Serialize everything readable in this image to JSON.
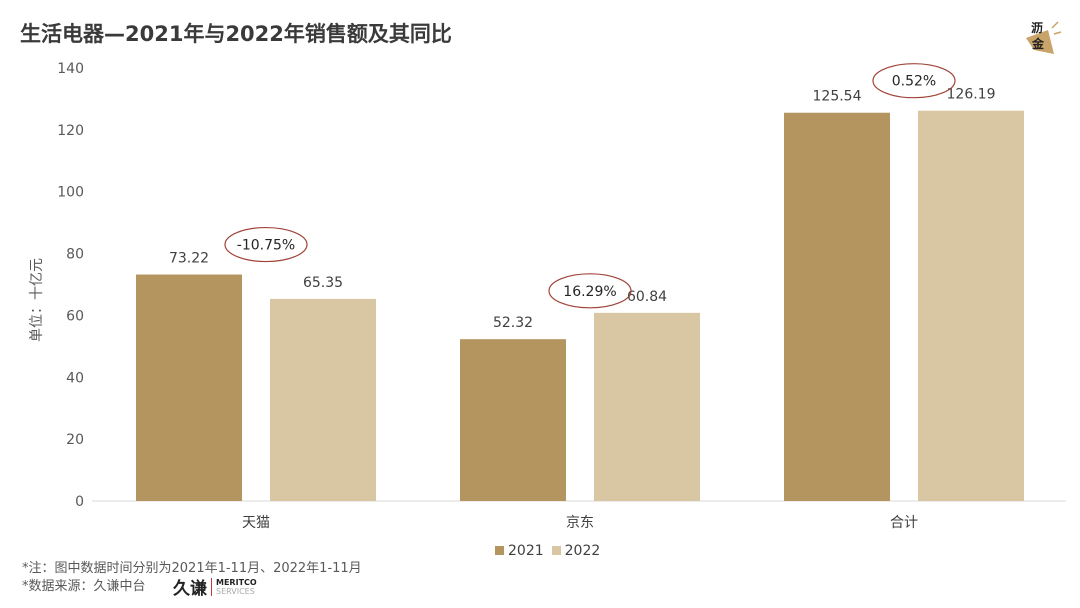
{
  "title": "生活电器—2021年与2022年销售额及其同比",
  "logo_text": "沥金",
  "notes": [
    "*注：图中数据时间分别为2021年1-11月、2022年1-11月",
    "*数据来源：久谦中台"
  ],
  "brand": {
    "cn": "久谦",
    "en1": "MERITCO",
    "en2": "SERVICES"
  },
  "chart_data": {
    "type": "bar",
    "title": "生活电器—2021年与2022年销售额及其同比",
    "ylabel": "单位：十亿元",
    "xlabel": "",
    "ylim": [
      0,
      140
    ],
    "yticks": [
      0,
      20,
      40,
      60,
      80,
      100,
      120,
      140
    ],
    "categories": [
      "天猫",
      "京东",
      "合计"
    ],
    "series": [
      {
        "name": "2021",
        "values": [
          73.22,
          52.32,
          125.54
        ],
        "color": "#b5955f"
      },
      {
        "name": "2022",
        "values": [
          65.35,
          60.84,
          126.19
        ],
        "color": "#d9c7a3"
      }
    ],
    "yoy_labels": [
      "-10.75%",
      "16.29%",
      "0.52%"
    ],
    "yoy_circle_color": "#a0443a",
    "legend_position": "bottom",
    "grid": false
  }
}
